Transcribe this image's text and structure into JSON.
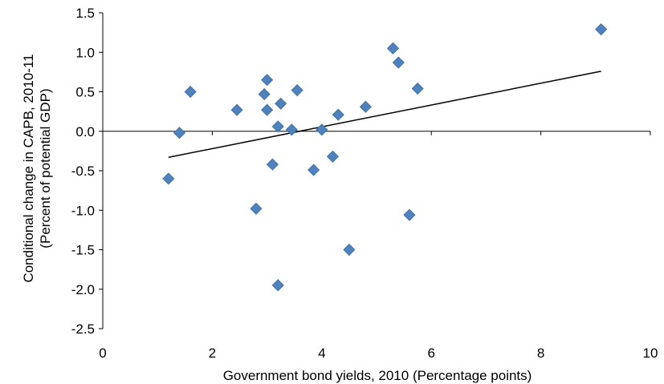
{
  "chart_data": {
    "type": "scatter",
    "title": "",
    "xlabel": "Government bond yields, 2010 (Percentage points)",
    "ylabel_lines": [
      "Conditional change in CAPB, 2010-11",
      "(Percent of potential GDP)"
    ],
    "xlim": [
      0,
      10
    ],
    "ylim": [
      -2.5,
      1.5
    ],
    "x_ticks": [
      0,
      2,
      4,
      6,
      8,
      10
    ],
    "x_tick_labels": [
      "0",
      "2",
      "4",
      "6",
      "8",
      "10"
    ],
    "y_ticks": [
      1.5,
      1.0,
      0.5,
      0.0,
      -0.5,
      -1.0,
      -1.5,
      -2.0,
      -2.5
    ],
    "y_tick_labels": [
      "1.5",
      "1.0",
      "0.5",
      "0.0",
      "-0.5",
      "-1.0",
      "-1.5",
      "-2.0",
      "-2.5"
    ],
    "grid": false,
    "marker_color": "#4f81bd",
    "trendline_color": "#000000",
    "points": [
      {
        "x": 1.2,
        "y": -0.6
      },
      {
        "x": 1.4,
        "y": -0.02
      },
      {
        "x": 1.6,
        "y": 0.5
      },
      {
        "x": 2.45,
        "y": 0.27
      },
      {
        "x": 2.8,
        "y": -0.98
      },
      {
        "x": 2.95,
        "y": 0.47
      },
      {
        "x": 3.0,
        "y": 0.65
      },
      {
        "x": 3.0,
        "y": 0.27
      },
      {
        "x": 3.1,
        "y": -0.42
      },
      {
        "x": 3.2,
        "y": 0.06
      },
      {
        "x": 3.2,
        "y": -1.95
      },
      {
        "x": 3.25,
        "y": 0.35
      },
      {
        "x": 3.45,
        "y": 0.02
      },
      {
        "x": 3.55,
        "y": 0.52
      },
      {
        "x": 3.85,
        "y": -0.49
      },
      {
        "x": 4.0,
        "y": 0.02
      },
      {
        "x": 4.2,
        "y": -0.32
      },
      {
        "x": 4.3,
        "y": 0.21
      },
      {
        "x": 4.5,
        "y": -1.5
      },
      {
        "x": 4.8,
        "y": 0.31
      },
      {
        "x": 5.3,
        "y": 1.05
      },
      {
        "x": 5.4,
        "y": 0.87
      },
      {
        "x": 5.6,
        "y": -1.06
      },
      {
        "x": 5.75,
        "y": 0.54
      },
      {
        "x": 9.1,
        "y": 1.29
      }
    ],
    "trendline": {
      "x": [
        1.2,
        9.1
      ],
      "y": [
        -0.33,
        0.76
      ]
    }
  }
}
